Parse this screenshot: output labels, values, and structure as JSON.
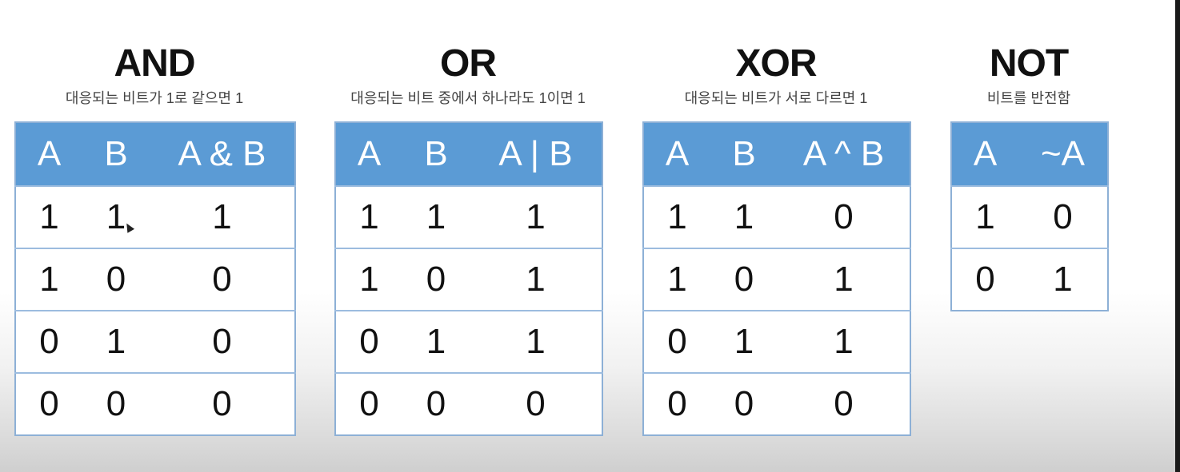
{
  "tables": [
    {
      "title": "AND",
      "subtitle": "대응되는 비트가 1로 같으면 1",
      "headers": [
        "A",
        "B",
        "A & B"
      ],
      "rows": [
        [
          "1",
          "1",
          "1"
        ],
        [
          "1",
          "0",
          "0"
        ],
        [
          "0",
          "1",
          "0"
        ],
        [
          "0",
          "0",
          "0"
        ]
      ]
    },
    {
      "title": "OR",
      "subtitle": "대응되는 비트 중에서 하나라도 1이면 1",
      "headers": [
        "A",
        "B",
        "A | B"
      ],
      "rows": [
        [
          "1",
          "1",
          "1"
        ],
        [
          "1",
          "0",
          "1"
        ],
        [
          "0",
          "1",
          "1"
        ],
        [
          "0",
          "0",
          "0"
        ]
      ]
    },
    {
      "title": "XOR",
      "subtitle": "대응되는 비트가 서로 다르면 1",
      "headers": [
        "A",
        "B",
        "A ^ B"
      ],
      "rows": [
        [
          "1",
          "1",
          "0"
        ],
        [
          "1",
          "0",
          "1"
        ],
        [
          "0",
          "1",
          "1"
        ],
        [
          "0",
          "0",
          "0"
        ]
      ]
    },
    {
      "title": "NOT",
      "subtitle": "비트를 반전함",
      "headers": [
        "A",
        "~A"
      ],
      "rows": [
        [
          "1",
          "0"
        ],
        [
          "0",
          "1"
        ]
      ]
    }
  ],
  "colors": {
    "header_background": "#5b9bd5",
    "header_text": "#ffffff",
    "border": "#8db0d6",
    "cell_text": "#111111"
  }
}
